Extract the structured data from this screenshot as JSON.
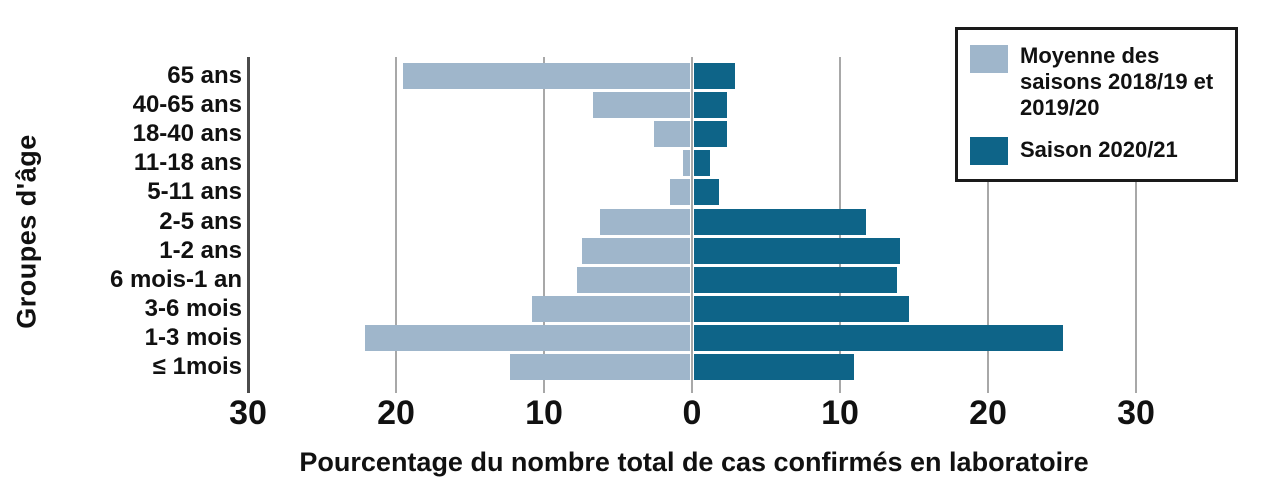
{
  "chart_data": {
    "type": "bar",
    "orientation": "horizontal-pyramid",
    "xlabel": "Pourcentage du nombre total de cas confirmés en laboratoire",
    "ylabel": "Groupes d'âge",
    "categories": [
      "65 ans",
      "40-65 ans",
      "18-40 ans",
      "11-18 ans",
      "5-11 ans",
      "2-5 ans",
      "1-2 ans",
      "6 mois-1 an",
      "3-6 mois",
      "1-3 mois",
      "≤ 1mois"
    ],
    "series": [
      {
        "name": "Moyenne des saisons 2018/19 et 2019/20",
        "side": "left",
        "color": "#9FB6CB",
        "values": [
          19.5,
          6.7,
          2.6,
          0.6,
          1.5,
          6.2,
          7.4,
          7.8,
          10.8,
          22.1,
          12.3
        ]
      },
      {
        "name": "Saison 2020/21",
        "side": "right",
        "color": "#0E6488",
        "values": [
          2.8,
          2.2,
          2.2,
          1.1,
          1.7,
          11.6,
          13.9,
          13.7,
          14.5,
          24.9,
          10.8
        ]
      }
    ],
    "xticks": [
      "30",
      "20",
      "10",
      "0",
      "10",
      "20",
      "30"
    ],
    "xtick_values": [
      -30,
      -20,
      -10,
      0,
      10,
      20,
      30
    ],
    "xlim": [
      -33,
      33
    ],
    "grid": "vertical-on",
    "legend_position": "top-right"
  },
  "legend": {
    "items": [
      {
        "label": "Moyenne des saisons 2018/19 et 2019/20",
        "color": "#9FB6CB"
      },
      {
        "label": "Saison 2020/21",
        "color": "#0E6488"
      }
    ]
  },
  "colors": {
    "series_mean": "#9FB6CB",
    "series_2021": "#0E6488",
    "gridline": "#A8A8A8",
    "axis_spine": "#4B4B4B",
    "text": "#111111"
  }
}
